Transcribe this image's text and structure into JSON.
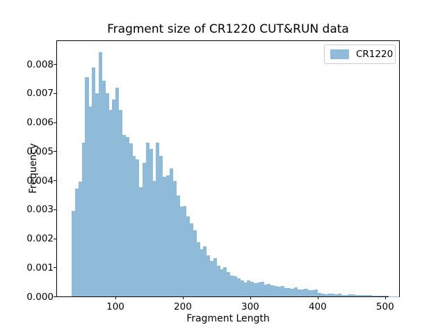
{
  "title": "Fragment size of CR1220 CUT&RUN data",
  "x_axis_label": "Fragment Length",
  "y_axis_label": "Frequency",
  "legend": {
    "label": "CR1220"
  },
  "colors": {
    "bar_fill": "#8fbbd9",
    "axis": "#000000",
    "legend_border": "#cccccc",
    "background": "#ffffff"
  },
  "chart_data": {
    "type": "bar",
    "subtype": "histogram",
    "title": "Fragment size of CR1220 CUT&RUN data",
    "xlabel": "Fragment Length",
    "ylabel": "Frequency",
    "grid": false,
    "legend_position": "upper right",
    "xlim": [
      13,
      523
    ],
    "ylim": [
      0,
      0.00884
    ],
    "x_ticks": [
      100,
      200,
      300,
      400,
      500
    ],
    "y_ticks": [
      0,
      0.001,
      0.002,
      0.003,
      0.004,
      0.005,
      0.006,
      0.007,
      0.008
    ],
    "y_tick_labels": [
      "0.000",
      "0.001",
      "0.002",
      "0.003",
      "0.004",
      "0.005",
      "0.006",
      "0.007",
      "0.008"
    ],
    "series": [
      {
        "name": "CR1220",
        "bin_start": 35,
        "bin_width": 5,
        "frequencies": [
          0.00295,
          0.00372,
          0.00395,
          0.0053,
          0.00755,
          0.00655,
          0.00788,
          0.007,
          0.00842,
          0.00743,
          0.007,
          0.00643,
          0.00677,
          0.00719,
          0.00643,
          0.00556,
          0.00549,
          0.00528,
          0.00485,
          0.00473,
          0.00376,
          0.0046,
          0.0053,
          0.00509,
          0.00398,
          0.0053,
          0.00485,
          0.00412,
          0.00418,
          0.0044,
          0.00398,
          0.00348,
          0.0031,
          0.00311,
          0.00276,
          0.00252,
          0.00228,
          0.00188,
          0.00164,
          0.00172,
          0.00141,
          0.00123,
          0.00133,
          0.00105,
          0.00093,
          0.00101,
          0.00083,
          0.00073,
          0.00069,
          0.00062,
          0.00055,
          0.00049,
          0.00055,
          0.0005,
          0.00045,
          0.00047,
          0.0005,
          0.00041,
          0.00043,
          0.00039,
          0.00037,
          0.00034,
          0.00037,
          0.00029,
          0.0003,
          0.00027,
          0.00031,
          0.00025,
          0.00023,
          0.00026,
          0.00022,
          0.00021,
          0.00023,
          0.00013,
          0.0001,
          8e-05,
          9e-05,
          0.0001,
          8e-05,
          9e-05,
          6e-05,
          5e-05,
          7e-05,
          8e-05,
          5e-05,
          4e-05,
          6e-05,
          6e-05,
          4e-05,
          3e-05,
          3e-05,
          2e-05,
          2e-05,
          2e-05,
          1e-05,
          1e-05,
          1e-05
        ]
      }
    ]
  }
}
